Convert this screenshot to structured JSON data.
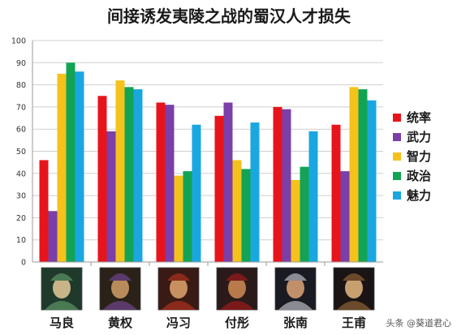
{
  "chart_data": {
    "type": "bar",
    "title": "间接诱发夷陵之战的蜀汉人才损失",
    "categories": [
      "马良",
      "黄权",
      "冯习",
      "付彤",
      "张南",
      "王甫"
    ],
    "series": [
      {
        "name": "统率",
        "color": "#e8141c",
        "values": [
          46,
          75,
          72,
          66,
          70,
          62
        ]
      },
      {
        "name": "武力",
        "color": "#7a3fa8",
        "values": [
          23,
          59,
          71,
          72,
          69,
          41
        ]
      },
      {
        "name": "智力",
        "color": "#f5c21b",
        "values": [
          85,
          82,
          39,
          46,
          37,
          79
        ]
      },
      {
        "name": "政治",
        "color": "#12a454",
        "values": [
          90,
          79,
          41,
          42,
          43,
          78
        ]
      },
      {
        "name": "魅力",
        "color": "#1aa7e0",
        "values": [
          86,
          78,
          62,
          63,
          59,
          73
        ]
      }
    ],
    "ylim": [
      0,
      100
    ],
    "yticks": [
      0,
      10,
      20,
      30,
      40,
      50,
      60,
      70,
      80,
      90,
      100
    ],
    "grid": true,
    "legend": "right"
  },
  "portraits": [
    {
      "icon": "portrait-ma-liang-icon",
      "colors": [
        "#1f3a2a",
        "#c9b48a",
        "#4a7a52"
      ]
    },
    {
      "icon": "portrait-huang-quan-icon",
      "colors": [
        "#2a2218",
        "#b88c5a",
        "#5a3a6a"
      ]
    },
    {
      "icon": "portrait-feng-xi-icon",
      "colors": [
        "#3a1a14",
        "#c89060",
        "#8a2a1a"
      ]
    },
    {
      "icon": "portrait-fu-tong-icon",
      "colors": [
        "#2a1a1a",
        "#b87a4a",
        "#7a1a1a"
      ]
    },
    {
      "icon": "portrait-zhang-nan-icon",
      "colors": [
        "#1a1a22",
        "#c0906a",
        "#8a8a92"
      ]
    },
    {
      "icon": "portrait-wang-fu-icon",
      "colors": [
        "#1a1414",
        "#c8a070",
        "#6a4a2a"
      ]
    }
  ],
  "watermark": "头条 @葵道君心"
}
